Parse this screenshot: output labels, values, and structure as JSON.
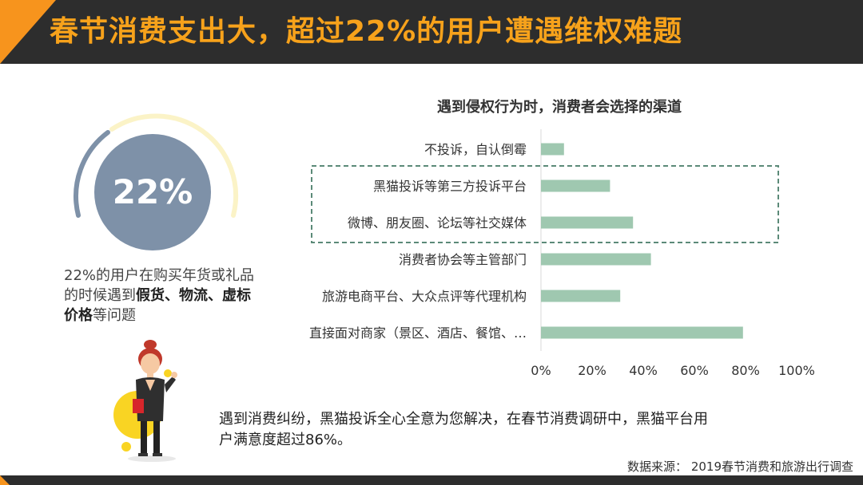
{
  "header": {
    "title": "春节消费支出大，超过22%的用户遭遇维权难题"
  },
  "left_panel": {
    "gauge_value": "22%",
    "desc_parts": [
      {
        "text": "22%的用户在购买年货或礼品的时候遇到",
        "bold": false
      },
      {
        "text": "假货、物流、虚标价格",
        "bold": true
      },
      {
        "text": "等问题",
        "bold": false
      }
    ]
  },
  "footer_message": "遇到消费纠纷，黑猫投诉全心全意为您解决，在春节消费调研中，黑猫平台用户满意度超过86%。",
  "source": "数据来源： 2019春节消费和旅游出行调查",
  "colors": {
    "bar": "#9fc8b0",
    "header_bg": "#2d2d2d",
    "accent": "#f7941d",
    "gauge_circle": "#7e91a8",
    "highlight_box": "#5b8a78"
  },
  "chart_data": {
    "type": "bar",
    "orientation": "horizontal",
    "title": "遇到侵权行为时，消费者会选择的渠道",
    "categories": [
      "不投诉，自认倒霉",
      "黑猫投诉等第三方投诉平台",
      "微博、朋友圈、论坛等社交媒体",
      "消费者协会等主管部门",
      "旅游电商平台、大众点评等代理机构",
      "直接面对商家（景区、酒店、餐馆、…"
    ],
    "values": [
      9,
      27,
      36,
      43,
      31,
      79
    ],
    "xlim": [
      0,
      100
    ],
    "xticks": [
      "0%",
      "20%",
      "40%",
      "60%",
      "80%",
      "100%"
    ],
    "xlabel": "",
    "ylabel": "",
    "grid": false,
    "legend": "none",
    "highlighted_categories": [
      1,
      2
    ]
  }
}
